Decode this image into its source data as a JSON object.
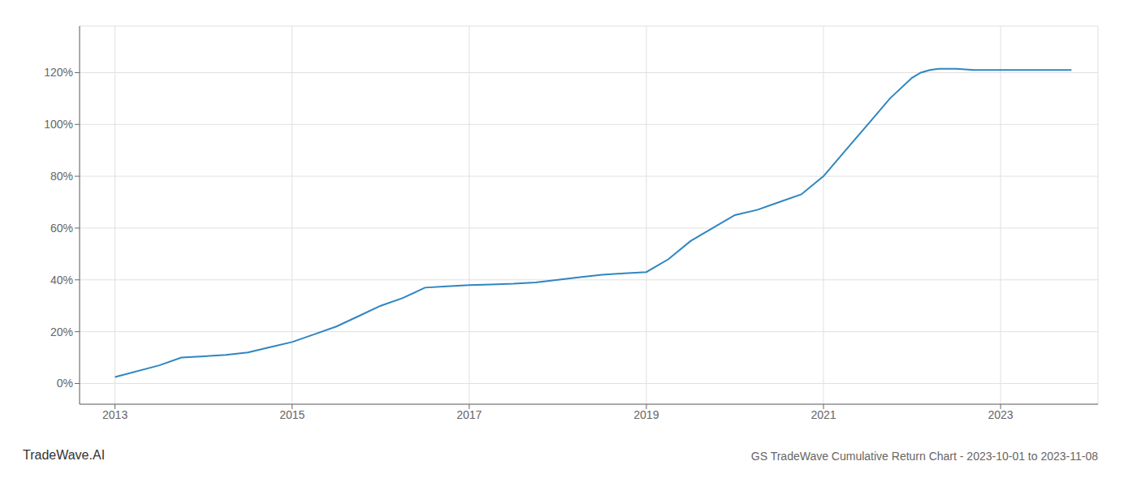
{
  "chart_data": {
    "type": "line",
    "title": "GS TradeWave Cumulative Return Chart - 2023-10-01 to 2023-11-08",
    "annotations": [
      "TradeWave.AI"
    ],
    "color": "#2e86c1",
    "x": [
      2013.0,
      2013.5,
      2013.75,
      2014.0,
      2014.25,
      2014.5,
      2014.75,
      2015.0,
      2015.25,
      2015.5,
      2015.75,
      2016.0,
      2016.25,
      2016.5,
      2016.75,
      2017.0,
      2017.25,
      2017.5,
      2017.75,
      2018.0,
      2018.25,
      2018.5,
      2018.75,
      2019.0,
      2019.25,
      2019.5,
      2019.75,
      2020.0,
      2020.25,
      2020.5,
      2020.75,
      2021.0,
      2021.25,
      2021.5,
      2021.75,
      2022.0,
      2022.1,
      2022.2,
      2022.3,
      2022.5,
      2022.7,
      2023.0,
      2023.4,
      2023.8
    ],
    "values": [
      2.5,
      7.0,
      10.0,
      10.5,
      11.0,
      12.0,
      14.0,
      16.0,
      19.0,
      22.0,
      26.0,
      30.0,
      33.0,
      37.0,
      37.5,
      38.0,
      38.2,
      38.5,
      39.0,
      40.0,
      41.0,
      42.0,
      42.5,
      43.0,
      48.0,
      55.0,
      60.0,
      65.0,
      67.0,
      70.0,
      73.0,
      80.0,
      90.0,
      100.0,
      110.0,
      118.0,
      120.0,
      121.0,
      121.5,
      121.5,
      121.0,
      121.0,
      121.0,
      121.0
    ],
    "xlim": [
      2012.6,
      2024.1
    ],
    "ylim": [
      -8,
      138
    ],
    "xticks": [
      2013,
      2015,
      2017,
      2019,
      2021,
      2023
    ],
    "yticks": [
      {
        "value": 0,
        "label": "0%"
      },
      {
        "value": 20,
        "label": "20%"
      },
      {
        "value": 40,
        "label": "40%"
      },
      {
        "value": 60,
        "label": "60%"
      },
      {
        "value": 80,
        "label": "80%"
      },
      {
        "value": 100,
        "label": "100%"
      },
      {
        "value": 120,
        "label": "120%"
      }
    ],
    "grid": true
  }
}
